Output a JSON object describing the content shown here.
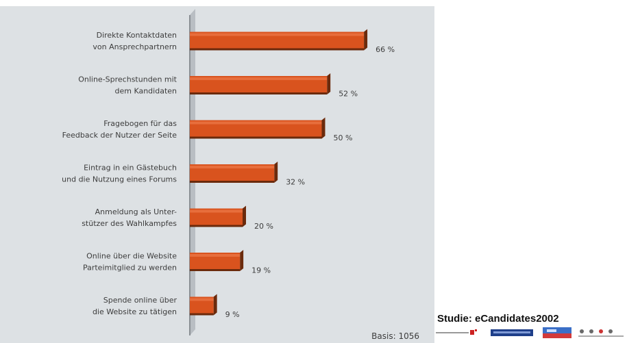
{
  "chart_data": {
    "type": "bar",
    "orientation": "horizontal",
    "categories": [
      "Direkte Kontaktdaten\nvon Ansprechpartnern",
      "Online-Sprechstunden mit\ndem Kandidaten",
      "Fragebogen für das\nFeedback der Nutzer der Seite",
      "Eintrag in ein Gästebuch\nund die Nutzung eines Forums",
      "Anmeldung als Unter-\nstützer des Wahlkampfes",
      "Online über die Website\nParteimitglied zu werden",
      "Spende online über\ndie Website zu tätigen"
    ],
    "values": [
      66,
      52,
      50,
      32,
      20,
      19,
      9
    ],
    "value_labels": [
      "66 %",
      "52 %",
      "50 %",
      "32 %",
      "20 %",
      "19 %",
      "9 %"
    ],
    "xlim": [
      0,
      100
    ],
    "grid": false,
    "bar_color": "#d9531e",
    "bar_shadow_color": "#6b2a0c",
    "note": "Basis: 1056"
  },
  "footer": {
    "title": "Studie: eCandidates2002"
  },
  "colors": {
    "panel_background": "#dde1e4",
    "axis": "#8a8f94",
    "text": "#3c3c3c"
  }
}
